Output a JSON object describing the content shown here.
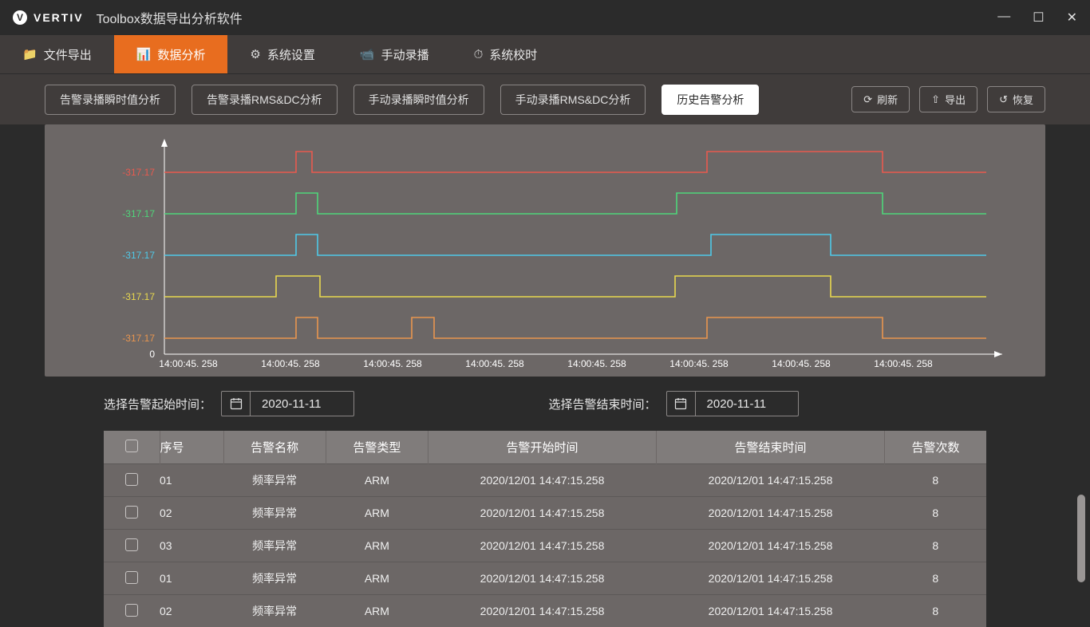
{
  "titlebar": {
    "brand": "VERTIV",
    "app_title": "Toolbox数据导出分析软件",
    "minimize": "—",
    "maximize": "☐",
    "close": "✕"
  },
  "nav": {
    "items": [
      {
        "icon": "📁",
        "label": "文件导出"
      },
      {
        "icon": "📊",
        "label": "数据分析"
      },
      {
        "icon": "⚙",
        "label": "系统设置"
      },
      {
        "icon": "📹",
        "label": "手动录播"
      },
      {
        "icon": "⏱",
        "label": "系统校时"
      }
    ],
    "active_index": 1
  },
  "subnav": {
    "tabs": [
      "告警录播瞬时值分析",
      "告警录播RMS&DC分析",
      "手动录播瞬时值分析",
      "手动录播RMS&DC分析",
      "历史告警分析"
    ],
    "active_index": 4,
    "actions": {
      "refresh": "刷新",
      "export": "导出",
      "restore": "恢复"
    }
  },
  "chart": {
    "y_labels": [
      "-317.17",
      "-317.17",
      "-317.17",
      "-317.17",
      "-317.17",
      "0"
    ],
    "x_labels": [
      "14:00:45. 258",
      "14:00:45. 258",
      "14:00:45. 258",
      "14:00:45. 258",
      "14:00:45. 258",
      "14:00:45. 258",
      "14:00:45. 258",
      "14:00:45. 258"
    ],
    "series": [
      {
        "color": "#e85a4f",
        "baseline_y": 48,
        "pulse_height": 26,
        "pulses": [
          {
            "x1": 295,
            "x2": 315
          },
          {
            "x1": 810,
            "x2": 1030
          }
        ]
      },
      {
        "color": "#4fd67a",
        "baseline_y": 100,
        "pulse_height": 26,
        "pulses": [
          {
            "x1": 295,
            "x2": 322
          },
          {
            "x1": 772,
            "x2": 1030
          }
        ]
      },
      {
        "color": "#4fc9e8",
        "baseline_y": 152,
        "pulse_height": 26,
        "pulses": [
          {
            "x1": 295,
            "x2": 322
          },
          {
            "x1": 815,
            "x2": 965
          }
        ]
      },
      {
        "color": "#e8d84f",
        "baseline_y": 204,
        "pulse_height": 26,
        "pulses": [
          {
            "x1": 270,
            "x2": 325
          },
          {
            "x1": 770,
            "x2": 965
          }
        ]
      },
      {
        "color": "#e8954f",
        "baseline_y": 256,
        "pulse_height": 26,
        "pulses": [
          {
            "x1": 295,
            "x2": 322
          },
          {
            "x1": 440,
            "x2": 468
          },
          {
            "x1": 810,
            "x2": 1030
          }
        ]
      }
    ],
    "axis_color": "#ffffff",
    "grid_start_x": 130,
    "grid_end_x": 1180,
    "x_tick_start": 160,
    "x_tick_step": 128
  },
  "date_row": {
    "start_label": "选择告警起始时间：",
    "end_label": "选择告警结束时间：",
    "start_value": "2020-11-11",
    "end_value": "2020-11-11"
  },
  "table": {
    "columns": [
      "",
      "序号",
      "告警名称",
      "告警类型",
      "告警开始时间",
      "告警结束时间",
      "告警次数"
    ],
    "rows": [
      [
        "01",
        "频率异常",
        "ARM",
        "2020/12/01   14:47:15.258",
        "2020/12/01   14:47:15.258",
        "8"
      ],
      [
        "02",
        "频率异常",
        "ARM",
        "2020/12/01   14:47:15.258",
        "2020/12/01   14:47:15.258",
        "8"
      ],
      [
        "03",
        "频率异常",
        "ARM",
        "2020/12/01   14:47:15.258",
        "2020/12/01   14:47:15.258",
        "8"
      ],
      [
        "01",
        "频率异常",
        "ARM",
        "2020/12/01   14:47:15.258",
        "2020/12/01   14:47:15.258",
        "8"
      ],
      [
        "02",
        "频率异常",
        "ARM",
        "2020/12/01   14:47:15.258",
        "2020/12/01   14:47:15.258",
        "8"
      ]
    ]
  }
}
